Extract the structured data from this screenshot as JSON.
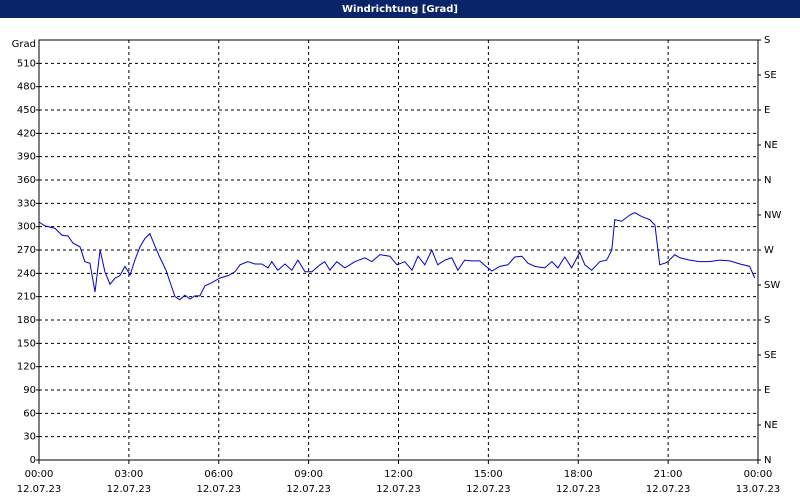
{
  "chart_data": {
    "type": "line",
    "title": "Windrichtung [Grad]",
    "y_label": "Grad",
    "x": [
      0,
      0.2,
      0.53,
      0.77,
      0.97,
      1.13,
      1.37,
      1.53,
      1.7,
      1.87,
      2.04,
      2.2,
      2.37,
      2.54,
      2.7,
      2.87,
      3.04,
      3.2,
      3.37,
      3.54,
      3.7,
      3.87,
      4.04,
      4.24,
      4.37,
      4.54,
      4.7,
      4.87,
      5.04,
      5.2,
      5.37,
      5.54,
      5.77,
      6.04,
      6.31,
      6.54,
      6.71,
      6.97,
      7.21,
      7.44,
      7.64,
      7.77,
      7.97,
      8.21,
      8.44,
      8.64,
      8.88,
      9.11,
      9.38,
      9.54,
      9.71,
      9.94,
      10.21,
      10.54,
      10.88,
      11.11,
      11.38,
      11.71,
      11.95,
      12.21,
      12.45,
      12.65,
      12.88,
      13.11,
      13.31,
      13.55,
      13.78,
      13.98,
      14.21,
      14.45,
      14.71,
      14.92,
      15.12,
      15.38,
      15.65,
      15.88,
      16.12,
      16.32,
      16.55,
      16.88,
      17.12,
      17.32,
      17.55,
      17.78,
      18.05,
      18.22,
      18.45,
      18.72,
      18.95,
      19.12,
      19.22,
      19.45,
      19.72,
      19.89,
      20.12,
      20.39,
      20.56,
      20.72,
      20.89,
      20.99,
      21.22,
      21.39,
      21.72,
      22.05,
      22.39,
      22.72,
      23.06,
      23.4,
      23.72,
      23.89
    ],
    "series": [
      {
        "color": "#0000cc",
        "values": [
          306,
          301,
          298,
          289,
          288,
          279,
          274,
          255,
          253,
          216,
          270,
          242,
          226,
          234,
          237,
          249,
          238,
          257,
          274,
          285,
          291,
          275,
          260,
          244,
          229,
          210,
          206,
          212,
          207,
          211,
          211,
          224,
          228,
          234,
          237,
          242,
          251,
          255,
          252,
          252,
          247,
          255,
          244,
          252,
          244,
          257,
          242,
          242,
          251,
          255,
          244,
          255,
          247,
          255,
          260,
          255,
          264,
          262,
          251,
          255,
          244,
          262,
          251,
          270,
          251,
          257,
          260,
          244,
          257,
          256,
          256,
          249,
          243,
          249,
          251,
          261,
          262,
          253,
          249,
          247,
          255,
          247,
          261,
          247,
          267,
          251,
          244,
          255,
          257,
          270,
          309,
          307,
          315,
          318,
          313,
          309,
          302,
          251,
          253,
          255,
          264,
          260,
          257,
          255,
          255,
          257,
          256,
          252,
          249,
          234
        ]
      }
    ],
    "xlim": [
      0,
      24
    ],
    "xticks": [
      {
        "value": 0,
        "label": "00:00",
        "date": "12.07.23"
      },
      {
        "value": 3,
        "label": "03:00",
        "date": "12.07.23"
      },
      {
        "value": 6,
        "label": "06:00",
        "date": "12.07.23"
      },
      {
        "value": 9,
        "label": "09:00",
        "date": "12.07.23"
      },
      {
        "value": 12,
        "label": "12:00",
        "date": "12.07.23"
      },
      {
        "value": 15,
        "label": "15:00",
        "date": "12.07.23"
      },
      {
        "value": 18,
        "label": "18:00",
        "date": "12.07.23"
      },
      {
        "value": 21,
        "label": "21:00",
        "date": "12.07.23"
      },
      {
        "value": 24,
        "label": "00:00",
        "date": "13.07.23"
      }
    ],
    "ylim": [
      0,
      540
    ],
    "yticks": [
      0,
      30,
      60,
      90,
      120,
      150,
      180,
      210,
      240,
      270,
      300,
      330,
      360,
      390,
      420,
      450,
      480,
      510
    ],
    "y2lim": [
      0,
      540
    ],
    "y2ticks": [
      {
        "value": 540,
        "label": "S"
      },
      {
        "value": 495,
        "label": "SE"
      },
      {
        "value": 450,
        "label": "E"
      },
      {
        "value": 405,
        "label": "NE"
      },
      {
        "value": 360,
        "label": "N"
      },
      {
        "value": 315,
        "label": "NW"
      },
      {
        "value": 270,
        "label": "W"
      },
      {
        "value": 225,
        "label": "SW"
      },
      {
        "value": 180,
        "label": "S"
      },
      {
        "value": 135,
        "label": "SE"
      },
      {
        "value": 90,
        "label": "E"
      },
      {
        "value": 45,
        "label": "NE"
      },
      {
        "value": 0,
        "label": "N"
      }
    ],
    "grid": true
  }
}
